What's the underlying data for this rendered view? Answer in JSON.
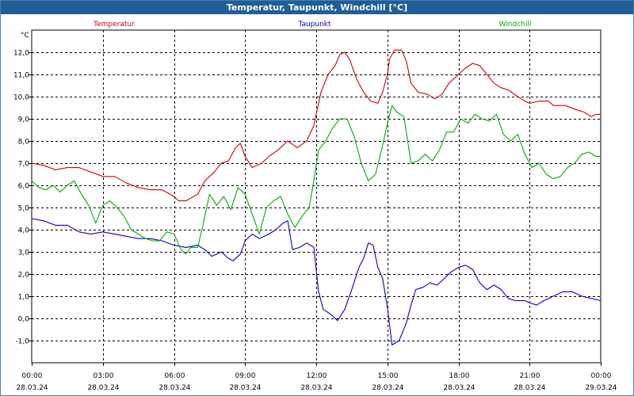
{
  "window": {
    "title": "Temperatur, Taupunkt, Windchill [°C]"
  },
  "chart_data": {
    "type": "line",
    "title": "Temperatur, Taupunkt, Windchill [°C]",
    "ylabel": "°C",
    "ylim": [
      -2,
      13
    ],
    "yticks": [
      12,
      11,
      10,
      9,
      8,
      7,
      6,
      5,
      4,
      3,
      2,
      1,
      0,
      -1
    ],
    "ytick_labels": [
      "12,0",
      "11,0",
      "10,0",
      "9,0",
      "8,0",
      "7,0",
      "6,0",
      "5,0",
      "4,0",
      "3,0",
      "2,0",
      "1,0",
      "0,0",
      "-1,0"
    ],
    "xlim": [
      0,
      24
    ],
    "xticks": [
      0,
      3,
      6,
      9,
      12,
      15,
      18,
      21,
      24
    ],
    "xtick_labels": [
      {
        "time": "00:00",
        "date": "28.03.24"
      },
      {
        "time": "03:00",
        "date": "28.03.24"
      },
      {
        "time": "06:00",
        "date": "28.03.24"
      },
      {
        "time": "09:00",
        "date": "28.03.24"
      },
      {
        "time": "12:00",
        "date": "28.03.24"
      },
      {
        "time": "15:00",
        "date": "28.03.24"
      },
      {
        "time": "18:00",
        "date": "28.03.24"
      },
      {
        "time": "21:00",
        "date": "28.03.24"
      },
      {
        "time": "00:00",
        "date": "29.03.24"
      }
    ],
    "grid": true,
    "legend_position": "top",
    "series": [
      {
        "name": "Temperatur",
        "color": "#cc0000",
        "points": [
          [
            0,
            7.0
          ],
          [
            0.5,
            6.9
          ],
          [
            1,
            6.7
          ],
          [
            1.5,
            6.8
          ],
          [
            2,
            6.8
          ],
          [
            2.5,
            6.6
          ],
          [
            3,
            6.4
          ],
          [
            3.5,
            6.4
          ],
          [
            4,
            6.1
          ],
          [
            4.5,
            5.9
          ],
          [
            5,
            5.8
          ],
          [
            5.5,
            5.8
          ],
          [
            6,
            5.5
          ],
          [
            6.2,
            5.3
          ],
          [
            6.5,
            5.3
          ],
          [
            7,
            5.6
          ],
          [
            7.3,
            6.2
          ],
          [
            7.7,
            6.6
          ],
          [
            8,
            7.0
          ],
          [
            8.3,
            7.1
          ],
          [
            8.6,
            7.7
          ],
          [
            8.8,
            7.9
          ],
          [
            9,
            7.3
          ],
          [
            9.3,
            6.8
          ],
          [
            9.7,
            7.0
          ],
          [
            10,
            7.3
          ],
          [
            10.4,
            7.6
          ],
          [
            10.8,
            8.0
          ],
          [
            11.2,
            7.7
          ],
          [
            11.6,
            8.0
          ],
          [
            11.9,
            8.7
          ],
          [
            12.2,
            10.2
          ],
          [
            12.5,
            11.0
          ],
          [
            12.8,
            11.4
          ],
          [
            13,
            11.9
          ],
          [
            13.2,
            12.0
          ],
          [
            13.4,
            11.7
          ],
          [
            13.7,
            10.8
          ],
          [
            14,
            10.2
          ],
          [
            14.3,
            9.8
          ],
          [
            14.6,
            9.7
          ],
          [
            14.8,
            10.2
          ],
          [
            15,
            11.0
          ],
          [
            15.1,
            11.7
          ],
          [
            15.3,
            12.1
          ],
          [
            15.6,
            12.1
          ],
          [
            15.8,
            11.6
          ],
          [
            16,
            10.6
          ],
          [
            16.3,
            10.2
          ],
          [
            16.7,
            10.1
          ],
          [
            17,
            9.9
          ],
          [
            17.3,
            10.1
          ],
          [
            17.6,
            10.6
          ],
          [
            18,
            11.0
          ],
          [
            18.3,
            11.3
          ],
          [
            18.6,
            11.5
          ],
          [
            18.9,
            11.4
          ],
          [
            19.2,
            11.0
          ],
          [
            19.5,
            10.6
          ],
          [
            19.8,
            10.4
          ],
          [
            20.1,
            10.3
          ],
          [
            20.5,
            10.0
          ],
          [
            20.8,
            9.8
          ],
          [
            21,
            9.7
          ],
          [
            21.4,
            9.8
          ],
          [
            21.8,
            9.8
          ],
          [
            22,
            9.6
          ],
          [
            22.5,
            9.6
          ],
          [
            23,
            9.4
          ],
          [
            23.3,
            9.3
          ],
          [
            23.6,
            9.1
          ],
          [
            23.8,
            9.2
          ],
          [
            24,
            9.2
          ]
        ]
      },
      {
        "name": "Taupunkt",
        "color": "#0000cc",
        "points": [
          [
            0,
            4.5
          ],
          [
            0.5,
            4.4
          ],
          [
            1,
            4.2
          ],
          [
            1.5,
            4.2
          ],
          [
            2,
            3.9
          ],
          [
            2.5,
            3.8
          ],
          [
            3,
            3.9
          ],
          [
            3.5,
            3.8
          ],
          [
            4,
            3.7
          ],
          [
            4.5,
            3.6
          ],
          [
            5,
            3.6
          ],
          [
            5.5,
            3.5
          ],
          [
            6,
            3.3
          ],
          [
            6.5,
            3.2
          ],
          [
            7,
            3.3
          ],
          [
            7.3,
            3.1
          ],
          [
            7.6,
            2.8
          ],
          [
            8,
            3.0
          ],
          [
            8.3,
            2.7
          ],
          [
            8.5,
            2.6
          ],
          [
            8.8,
            2.9
          ],
          [
            9,
            3.5
          ],
          [
            9.3,
            3.8
          ],
          [
            9.6,
            3.6
          ],
          [
            10,
            3.8
          ],
          [
            10.3,
            4.0
          ],
          [
            10.6,
            4.3
          ],
          [
            10.8,
            4.4
          ],
          [
            11,
            3.1
          ],
          [
            11.3,
            3.2
          ],
          [
            11.6,
            3.4
          ],
          [
            11.9,
            3.2
          ],
          [
            12.1,
            1.2
          ],
          [
            12.3,
            0.4
          ],
          [
            12.6,
            0.2
          ],
          [
            12.9,
            -0.1
          ],
          [
            13.2,
            0.4
          ],
          [
            13.5,
            1.3
          ],
          [
            13.8,
            2.3
          ],
          [
            14,
            2.7
          ],
          [
            14.2,
            3.4
          ],
          [
            14.4,
            3.3
          ],
          [
            14.6,
            2.3
          ],
          [
            14.8,
            1.8
          ],
          [
            15,
            0.5
          ],
          [
            15.2,
            -1.2
          ],
          [
            15.5,
            -1.0
          ],
          [
            15.8,
            -0.2
          ],
          [
            16,
            0.6
          ],
          [
            16.2,
            1.3
          ],
          [
            16.5,
            1.4
          ],
          [
            16.8,
            1.6
          ],
          [
            17.1,
            1.5
          ],
          [
            17.4,
            1.8
          ],
          [
            17.7,
            2.1
          ],
          [
            18,
            2.3
          ],
          [
            18.3,
            2.4
          ],
          [
            18.6,
            2.2
          ],
          [
            18.9,
            1.6
          ],
          [
            19.2,
            1.3
          ],
          [
            19.5,
            1.5
          ],
          [
            19.8,
            1.3
          ],
          [
            20.1,
            0.9
          ],
          [
            20.4,
            0.8
          ],
          [
            20.8,
            0.8
          ],
          [
            21,
            0.7
          ],
          [
            21.3,
            0.6
          ],
          [
            21.6,
            0.8
          ],
          [
            22,
            1.0
          ],
          [
            22.4,
            1.2
          ],
          [
            22.8,
            1.2
          ],
          [
            23.2,
            1.0
          ],
          [
            23.6,
            0.9
          ],
          [
            24,
            0.8
          ]
        ]
      },
      {
        "name": "Windchill",
        "color": "#00aa00",
        "points": [
          [
            0,
            6.2
          ],
          [
            0.3,
            5.9
          ],
          [
            0.6,
            5.8
          ],
          [
            0.9,
            6.0
          ],
          [
            1.2,
            5.7
          ],
          [
            1.5,
            6.0
          ],
          [
            1.8,
            6.2
          ],
          [
            2.1,
            5.6
          ],
          [
            2.4,
            5.1
          ],
          [
            2.7,
            4.3
          ],
          [
            3,
            5.1
          ],
          [
            3.3,
            5.3
          ],
          [
            3.6,
            5.0
          ],
          [
            3.9,
            4.6
          ],
          [
            4.2,
            4.0
          ],
          [
            4.5,
            3.8
          ],
          [
            4.8,
            3.6
          ],
          [
            5.1,
            3.5
          ],
          [
            5.4,
            3.5
          ],
          [
            5.7,
            3.9
          ],
          [
            6,
            3.8
          ],
          [
            6.3,
            3.1
          ],
          [
            6.5,
            2.9
          ],
          [
            6.7,
            3.2
          ],
          [
            7,
            3.2
          ],
          [
            7.2,
            4.1
          ],
          [
            7.5,
            5.6
          ],
          [
            7.8,
            5.1
          ],
          [
            8.1,
            5.5
          ],
          [
            8.4,
            4.9
          ],
          [
            8.7,
            5.9
          ],
          [
            9,
            5.6
          ],
          [
            9.3,
            4.7
          ],
          [
            9.6,
            3.8
          ],
          [
            9.9,
            5.0
          ],
          [
            10.2,
            5.3
          ],
          [
            10.5,
            5.5
          ],
          [
            10.8,
            4.7
          ],
          [
            11.1,
            4.1
          ],
          [
            11.4,
            4.6
          ],
          [
            11.7,
            5.0
          ],
          [
            11.9,
            6.2
          ],
          [
            12.1,
            7.6
          ],
          [
            12.4,
            8.0
          ],
          [
            12.7,
            8.6
          ],
          [
            13,
            9.0
          ],
          [
            13.3,
            9.0
          ],
          [
            13.6,
            8.2
          ],
          [
            13.9,
            7.0
          ],
          [
            14.2,
            6.2
          ],
          [
            14.5,
            6.5
          ],
          [
            14.8,
            7.8
          ],
          [
            15,
            8.8
          ],
          [
            15.2,
            9.6
          ],
          [
            15.4,
            9.3
          ],
          [
            15.7,
            9.1
          ],
          [
            16,
            7.0
          ],
          [
            16.3,
            7.1
          ],
          [
            16.6,
            7.4
          ],
          [
            16.9,
            7.1
          ],
          [
            17.2,
            7.6
          ],
          [
            17.5,
            8.4
          ],
          [
            17.8,
            8.4
          ],
          [
            18.1,
            9.0
          ],
          [
            18.4,
            8.8
          ],
          [
            18.7,
            9.2
          ],
          [
            19,
            9.0
          ],
          [
            19.3,
            8.9
          ],
          [
            19.6,
            9.2
          ],
          [
            19.9,
            8.3
          ],
          [
            20.2,
            8.0
          ],
          [
            20.5,
            8.3
          ],
          [
            20.8,
            7.4
          ],
          [
            21.1,
            6.8
          ],
          [
            21.4,
            7.0
          ],
          [
            21.7,
            6.5
          ],
          [
            22,
            6.3
          ],
          [
            22.3,
            6.4
          ],
          [
            22.6,
            6.8
          ],
          [
            22.9,
            7.0
          ],
          [
            23.2,
            7.4
          ],
          [
            23.5,
            7.5
          ],
          [
            23.8,
            7.3
          ],
          [
            24,
            7.3
          ]
        ]
      }
    ]
  }
}
